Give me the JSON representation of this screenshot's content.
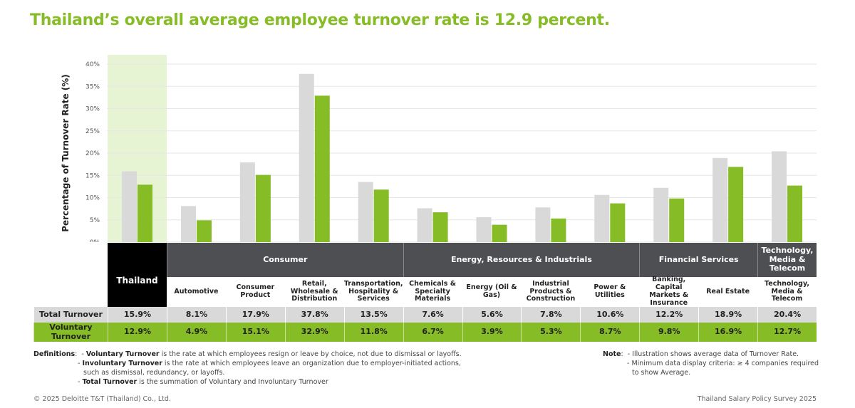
{
  "title": "Thailand’s overall average employee turnover rate is 12.9 percent.",
  "chart_data": {
    "type": "bar",
    "ylabel": "Percentage of Turnover Rate (%)",
    "ylim": [
      0,
      40
    ],
    "yticks": [
      "0%",
      "5%",
      "10%",
      "15%",
      "20%",
      "25%",
      "30%",
      "35%",
      "40%"
    ],
    "grid": true,
    "highlight_color": "#e6f4d4",
    "series_colors": {
      "total": "#d9d9d9",
      "voluntary": "#86bc25"
    },
    "categories": [
      "Thailand",
      "Automotive",
      "Consumer Product",
      "Retail, Wholesale & Distribution",
      "Transportation, Hospitality & Services",
      "Chemicals & Specialty Materials",
      "Energy (Oil & Gas)",
      "Industrial Products & Construction",
      "Power & Utilities",
      "Banking, Capital Markets & Insurance",
      "Real Estate",
      "Technology, Media & Telecom"
    ],
    "groups": [
      {
        "label": "Consumer",
        "span": 4
      },
      {
        "label": "Energy, Resources & Industrials",
        "span": 4
      },
      {
        "label": "Financial Services",
        "span": 2
      },
      {
        "label": "Technology, Media & Telecom",
        "span": 1
      }
    ],
    "series": [
      {
        "name": "Total Turnover",
        "values": [
          15.9,
          8.1,
          17.9,
          37.8,
          13.5,
          7.6,
          5.6,
          7.8,
          10.6,
          12.2,
          18.9,
          20.4
        ],
        "labels": [
          "15.9%",
          "8.1%",
          "17.9%",
          "37.8%",
          "13.5%",
          "7.6%",
          "5.6%",
          "7.8%",
          "10.6%",
          "12.2%",
          "18.9%",
          "20.4%"
        ]
      },
      {
        "name": "Voluntary Turnover",
        "values": [
          12.9,
          4.9,
          15.1,
          32.9,
          11.8,
          6.7,
          3.9,
          5.3,
          8.7,
          9.8,
          16.9,
          12.7
        ],
        "labels": [
          "12.9%",
          "4.9%",
          "15.1%",
          "32.9%",
          "11.8%",
          "6.7%",
          "3.9%",
          "5.3%",
          "8.7%",
          "9.8%",
          "16.9%",
          "12.7%"
        ]
      }
    ]
  },
  "definitions": {
    "label": "Definitions",
    "voluntary_term": "Voluntary Turnover",
    "voluntary_text": " is the rate at which employees resign or leave by choice, not due to dismissal or layoffs.",
    "involuntary_term": "Involuntary Turnover",
    "involuntary_text": " is the rate at which employees leave an organization due to employer-initiated actions,",
    "involuntary_text2": "such as dismissal, redundancy, or layoffs.",
    "total_term": "Total Turnover",
    "total_text": " is the summation of Voluntary and Involuntary Turnover"
  },
  "note": {
    "label": "Note",
    "line1": "Illustration shows average data of Turnover Rate.",
    "line2": "Minimum data display criteria: ≥ 4 companies required",
    "line3": "to show Average."
  },
  "footer": {
    "copyright": "© 2025 Deloitte T&T (Thailand) Co., Ltd.",
    "source": "Thailand Salary Policy Survey 2025"
  }
}
